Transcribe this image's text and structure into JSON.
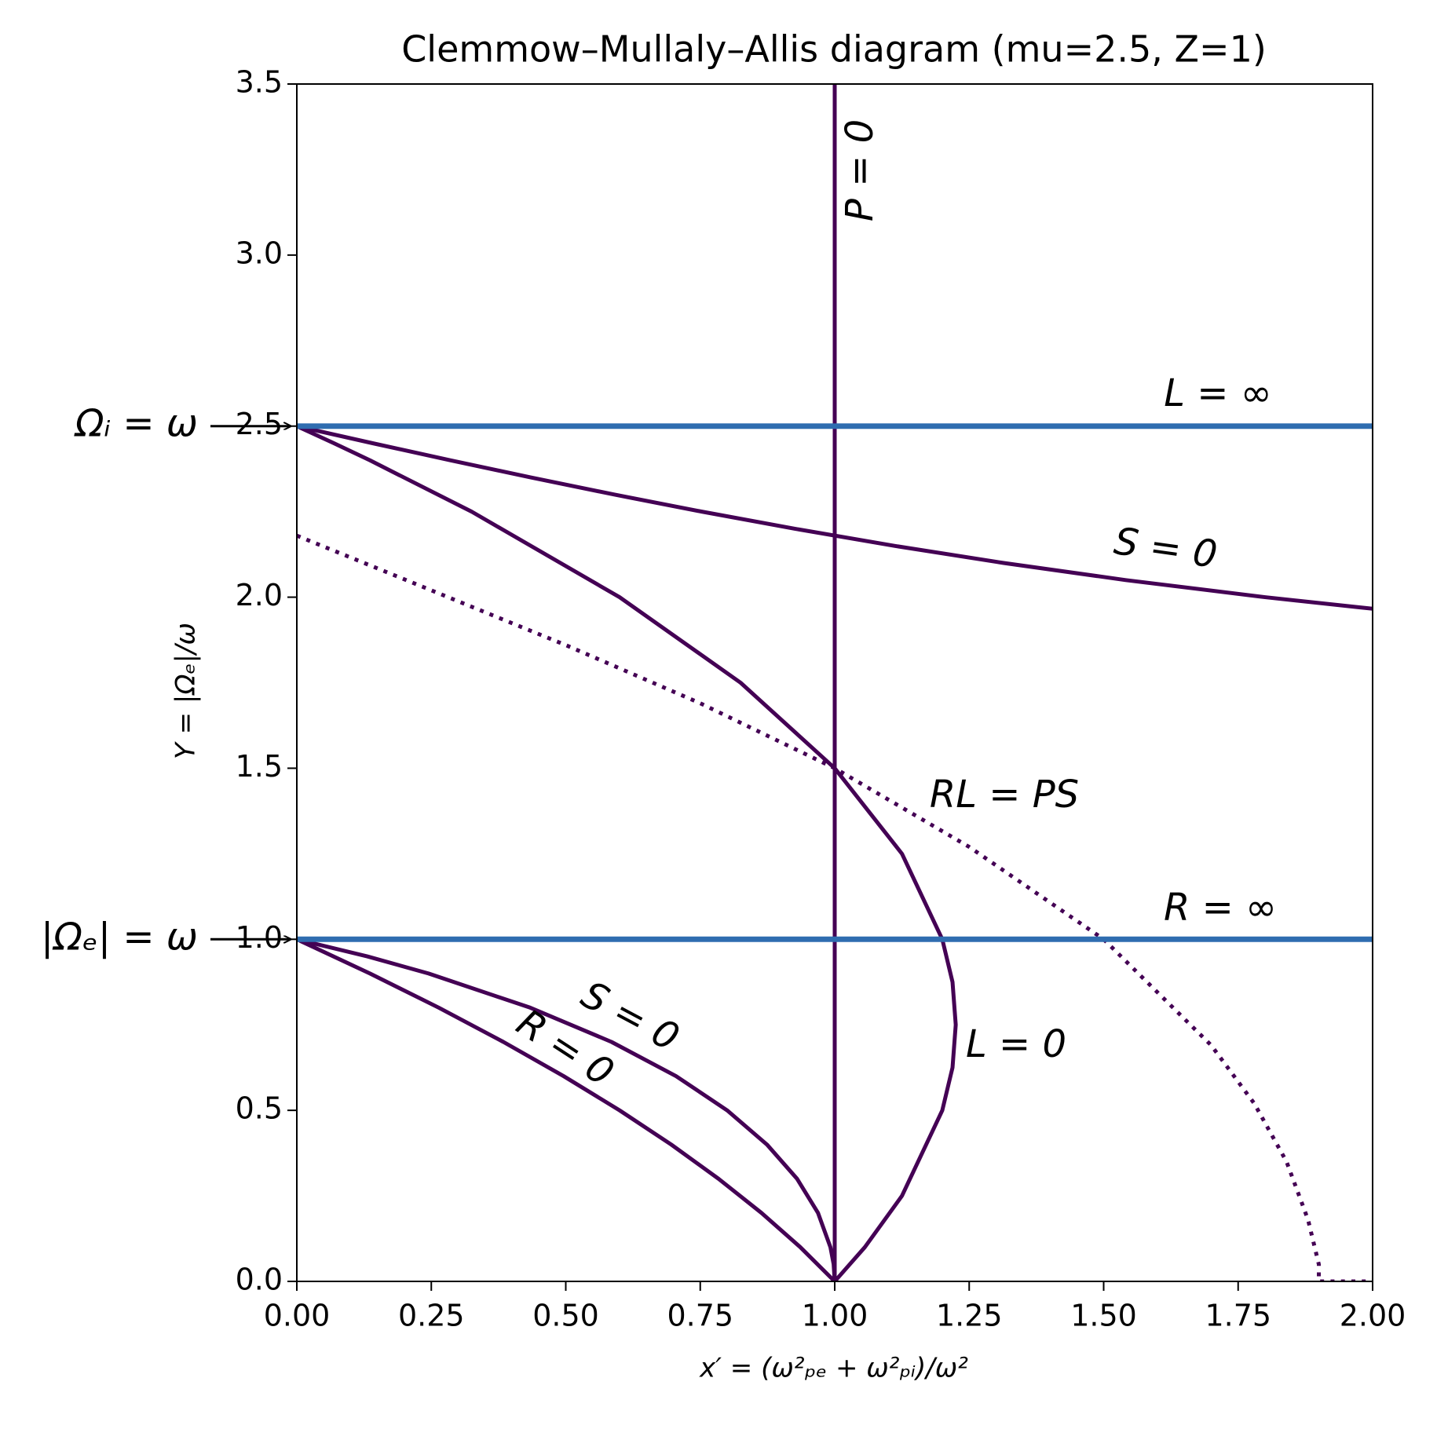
{
  "chart_data": {
    "type": "line",
    "title": "Clemmow–Mullaly–Allis diagram (mu=2.5, Z=1)",
    "x_label": "x′ = (ω²ₚₑ + ω²ₚᵢ)/ω²",
    "y_label": "Y = |Ωₑ|/ω",
    "xlim": [
      0,
      2
    ],
    "ylim": [
      0,
      3.5
    ],
    "xticks": [
      {
        "value": 0,
        "label": "0.00"
      },
      {
        "value": 0.25,
        "label": "0.25"
      },
      {
        "value": 0.5,
        "label": "0.50"
      },
      {
        "value": 0.75,
        "label": "0.75"
      },
      {
        "value": 1,
        "label": "1.00"
      },
      {
        "value": 1.25,
        "label": "1.25"
      },
      {
        "value": 1.5,
        "label": "1.50"
      },
      {
        "value": 1.75,
        "label": "1.75"
      },
      {
        "value": 2,
        "label": "2.00"
      }
    ],
    "yticks": [
      {
        "value": 0,
        "label": "0.0"
      },
      0.5,
      {
        "value": 1,
        "label": "1.0"
      },
      1.5,
      {
        "value": 2,
        "label": "2.0"
      },
      2.5,
      {
        "value": 3,
        "label": "3.0"
      },
      3.5
    ],
    "series": [
      {
        "color": "#440154",
        "linewidth": 2,
        "linestyle": "dotted",
        "x": [
          0,
          0
        ],
        "values": [
          0,
          3.5
        ]
      },
      {
        "color": "#440154",
        "linewidth": 5,
        "linestyle": "solid",
        "x": [
          1,
          1
        ],
        "values": [
          0,
          3.5
        ]
      },
      {
        "color": "#440154",
        "linewidth": 5,
        "linestyle": "solid",
        "x": [
          1,
          1.056,
          1.125,
          1.2,
          1.219,
          1.225,
          1.219,
          1.2,
          1.125,
          1,
          0.825,
          0.6,
          0.325,
          0.136,
          0.069,
          0
        ],
        "values": [
          0,
          0.1,
          0.25,
          0.5,
          0.625,
          0.75,
          0.875,
          1,
          1.25,
          1.5,
          1.75,
          2,
          2.25,
          2.4,
          2.45,
          2.5
        ]
      },
      {
        "color": "#440154",
        "linewidth": 5,
        "linestyle": "solid",
        "x": [
          1,
          0.936,
          0.864,
          0.784,
          0.696,
          0.6,
          0.496,
          0.384,
          0.264,
          0.136,
          0
        ],
        "values": [
          0,
          0.1,
          0.2,
          0.3,
          0.4,
          0.5,
          0.6,
          0.7,
          0.8,
          0.9,
          1
        ]
      },
      {
        "color": "#440154",
        "linewidth": 5,
        "linestyle": "solid",
        "x": [
          1,
          0.998,
          0.992,
          0.969,
          0.93,
          0.874,
          0.8,
          0.705,
          0.585,
          0.434,
          0.245,
          0.131,
          0
        ],
        "values": [
          0,
          0.05,
          0.1,
          0.2,
          0.3,
          0.4,
          0.5,
          0.6,
          0.7,
          0.8,
          0.9,
          0.95,
          1
        ]
      },
      {
        "color": "#440154",
        "linewidth": 5,
        "linestyle": "solid",
        "x": [
          0,
          0.141,
          0.286,
          0.435,
          0.59,
          0.753,
          0.926,
          1.111,
          1.314,
          1.541,
          1.8,
          1.977,
          2.04
        ],
        "values": [
          2.5,
          2.45,
          2.4,
          2.35,
          2.3,
          2.25,
          2.2,
          2.15,
          2.1,
          2.05,
          2,
          1.97,
          1.96
        ]
      },
      {
        "color": "#440154",
        "linewidth": 5,
        "linestyle": "dotted",
        "x": [
          0,
          0.25,
          0.5,
          0.75,
          1,
          1.25,
          1.5,
          1.7,
          1.78,
          1.84,
          1.88,
          1.9,
          1.9,
          2
        ],
        "values": [
          2.18,
          2.02,
          1.86,
          1.69,
          1.5,
          1.27,
          1,
          0.69,
          0.52,
          0.35,
          0.18,
          0.05,
          0,
          0
        ]
      },
      {
        "color": "#2f6db0",
        "linewidth": 7,
        "linestyle": "solid",
        "x": [
          0,
          2
        ],
        "values": [
          2.5,
          2.5
        ]
      },
      {
        "color": "#2f6db0",
        "linewidth": 7,
        "linestyle": "solid",
        "x": [
          0,
          2
        ],
        "values": [
          1,
          1
        ]
      }
    ],
    "annotations": [
      {
        "text": "L = ∞"
      },
      {
        "text": "S = 0"
      },
      {
        "text": "RL = PS"
      },
      {
        "text": "R = ∞"
      },
      {
        "text": "L = 0"
      },
      {
        "text": "S = 0"
      },
      {
        "text": "R = 0"
      },
      {
        "text": "P = 0"
      },
      {
        "text": "Ωᵢ = ω"
      },
      {
        "text": "|Ωₑ| = ω"
      }
    ]
  }
}
